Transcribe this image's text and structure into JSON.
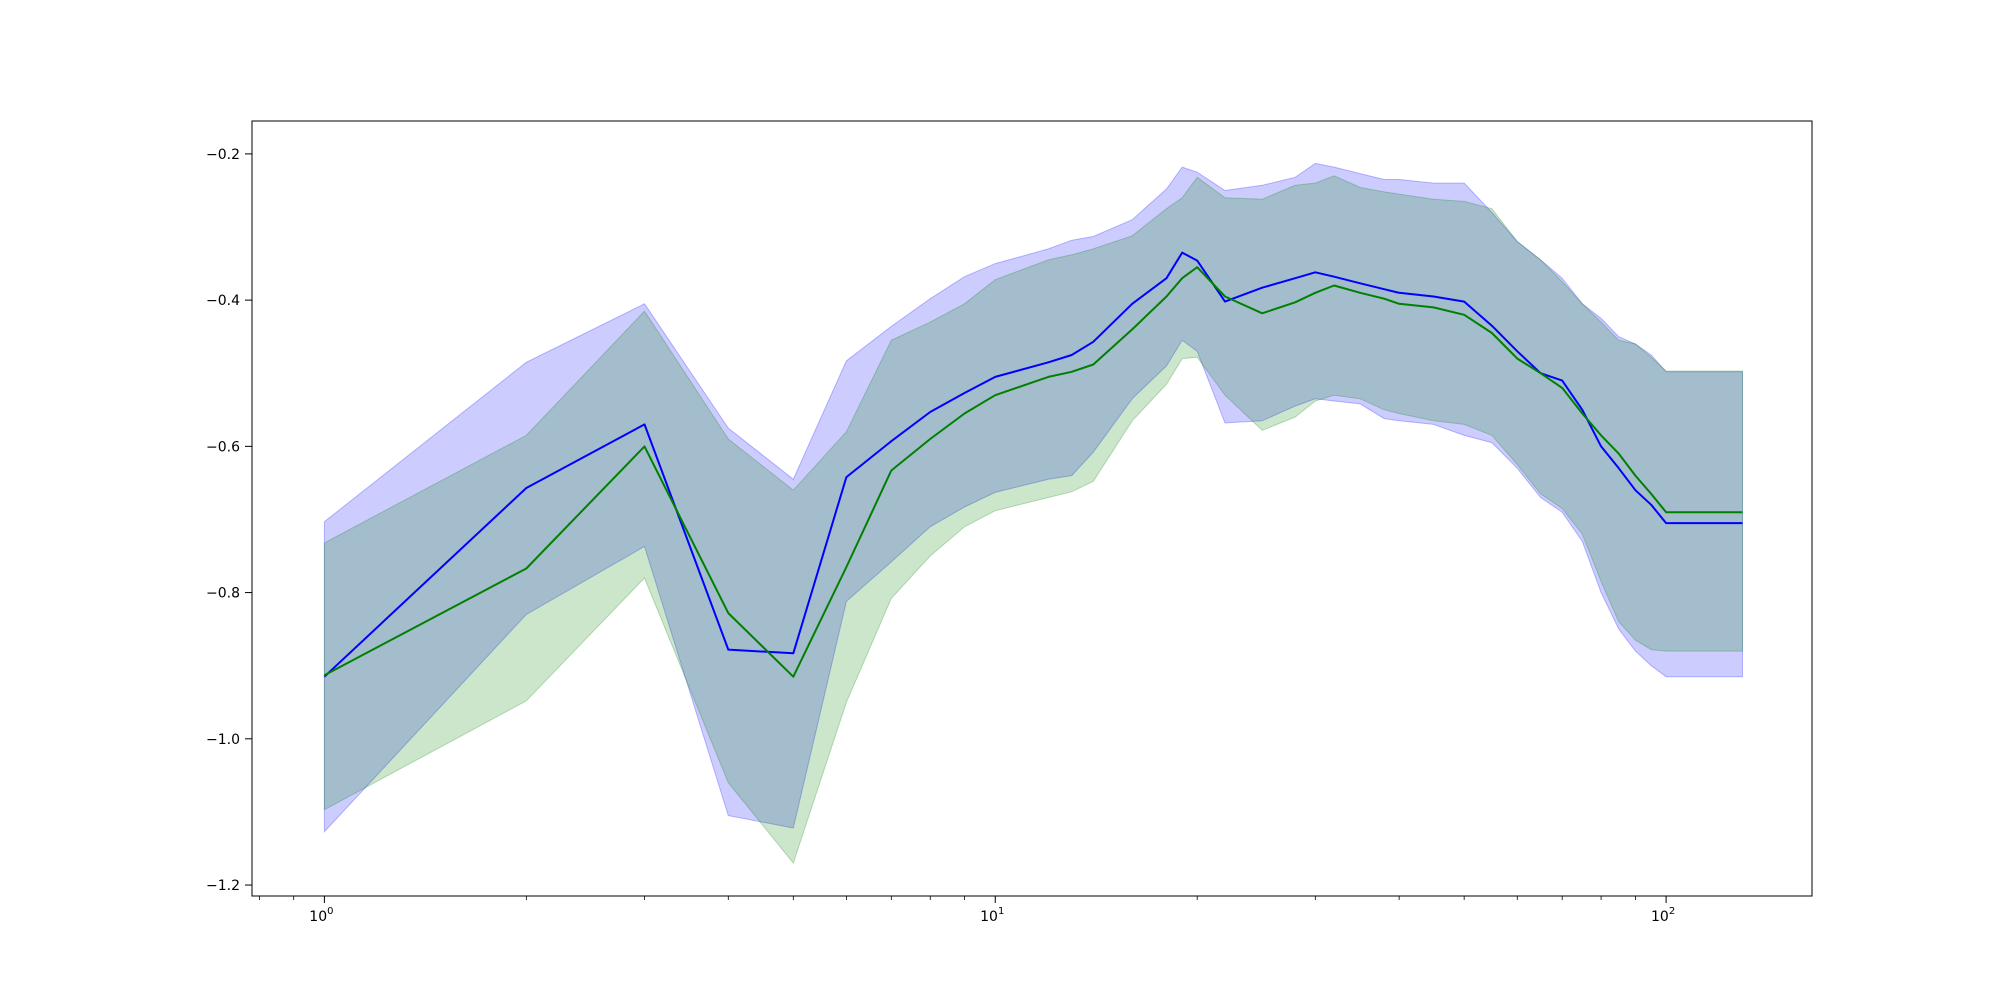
{
  "chart_data": {
    "type": "line",
    "title": "",
    "xlabel": "",
    "ylabel": "",
    "x_scale": "log",
    "x_ticks": [
      {
        "value": 1,
        "base": "10",
        "exp": "0"
      },
      {
        "value": 10,
        "base": "10",
        "exp": "1"
      },
      {
        "value": 100,
        "base": "10",
        "exp": "2"
      }
    ],
    "y_ticks": [
      {
        "value": -0.2,
        "label": "−0.2"
      },
      {
        "value": -0.4,
        "label": "−0.4"
      },
      {
        "value": -0.6,
        "label": "−0.6"
      },
      {
        "value": -0.8,
        "label": "−0.8"
      },
      {
        "value": -1.0,
        "label": "−1.0"
      },
      {
        "value": -1.2,
        "label": "−1.2"
      }
    ],
    "xlim": [
      0.78,
      165
    ],
    "ylim": [
      -1.215,
      -0.155
    ],
    "grid": false,
    "legend": "none",
    "series": [
      {
        "color": "#0000ff",
        "band_color": "#0000ff",
        "band_opacity": 0.2,
        "x": [
          1,
          2,
          3,
          4,
          5,
          6,
          7,
          8,
          9,
          10,
          12,
          13,
          14,
          16,
          18,
          19,
          20,
          22,
          25,
          28,
          30,
          32,
          35,
          38,
          40,
          45,
          50,
          55,
          60,
          65,
          70,
          75,
          80,
          85,
          90,
          95,
          100,
          130
        ],
        "values": [
          -0.915,
          -0.657,
          -0.57,
          -0.878,
          -0.883,
          -0.642,
          -0.593,
          -0.553,
          -0.527,
          -0.505,
          -0.485,
          -0.475,
          -0.457,
          -0.405,
          -0.37,
          -0.335,
          -0.346,
          -0.402,
          -0.383,
          -0.37,
          -0.362,
          -0.368,
          -0.377,
          -0.385,
          -0.39,
          -0.395,
          -0.402,
          -0.435,
          -0.47,
          -0.5,
          -0.51,
          -0.55,
          -0.6,
          -0.63,
          -0.66,
          -0.68,
          -0.705,
          -0.705
        ],
        "upper": [
          -0.703,
          -0.485,
          -0.405,
          -0.575,
          -0.645,
          -0.483,
          -0.436,
          -0.398,
          -0.368,
          -0.35,
          -0.33,
          -0.318,
          -0.313,
          -0.29,
          -0.248,
          -0.218,
          -0.225,
          -0.25,
          -0.243,
          -0.232,
          -0.213,
          -0.218,
          -0.227,
          -0.235,
          -0.235,
          -0.24,
          -0.24,
          -0.28,
          -0.32,
          -0.345,
          -0.37,
          -0.405,
          -0.425,
          -0.45,
          -0.46,
          -0.475,
          -0.498,
          -0.498
        ],
        "lower": [
          -1.127,
          -0.83,
          -0.737,
          -1.105,
          -1.122,
          -0.812,
          -0.758,
          -0.71,
          -0.683,
          -0.663,
          -0.645,
          -0.64,
          -0.608,
          -0.535,
          -0.49,
          -0.455,
          -0.47,
          -0.568,
          -0.565,
          -0.545,
          -0.535,
          -0.538,
          -0.542,
          -0.562,
          -0.565,
          -0.57,
          -0.585,
          -0.595,
          -0.63,
          -0.67,
          -0.69,
          -0.73,
          -0.8,
          -0.85,
          -0.88,
          -0.9,
          -0.915,
          -0.915
        ]
      },
      {
        "color": "#008000",
        "band_color": "#008000",
        "band_opacity": 0.2,
        "x": [
          1,
          2,
          3,
          4,
          5,
          6,
          7,
          8,
          9,
          10,
          12,
          13,
          14,
          16,
          18,
          19,
          20,
          22,
          25,
          28,
          30,
          32,
          35,
          38,
          40,
          45,
          50,
          55,
          60,
          65,
          70,
          75,
          80,
          85,
          90,
          95,
          100,
          130
        ],
        "values": [
          -0.913,
          -0.767,
          -0.6,
          -0.828,
          -0.915,
          -0.765,
          -0.633,
          -0.59,
          -0.555,
          -0.53,
          -0.505,
          -0.498,
          -0.488,
          -0.44,
          -0.395,
          -0.37,
          -0.355,
          -0.395,
          -0.418,
          -0.403,
          -0.39,
          -0.38,
          -0.39,
          -0.398,
          -0.405,
          -0.41,
          -0.42,
          -0.445,
          -0.48,
          -0.5,
          -0.52,
          -0.555,
          -0.585,
          -0.61,
          -0.64,
          -0.665,
          -0.69,
          -0.69
        ],
        "upper": [
          -0.732,
          -0.585,
          -0.415,
          -0.59,
          -0.66,
          -0.58,
          -0.455,
          -0.43,
          -0.405,
          -0.372,
          -0.345,
          -0.338,
          -0.33,
          -0.312,
          -0.275,
          -0.26,
          -0.232,
          -0.26,
          -0.262,
          -0.243,
          -0.24,
          -0.23,
          -0.246,
          -0.252,
          -0.255,
          -0.262,
          -0.265,
          -0.275,
          -0.32,
          -0.345,
          -0.375,
          -0.405,
          -0.43,
          -0.455,
          -0.46,
          -0.478,
          -0.497,
          -0.497
        ],
        "lower": [
          -1.097,
          -0.948,
          -0.78,
          -1.06,
          -1.17,
          -0.95,
          -0.808,
          -0.75,
          -0.71,
          -0.688,
          -0.67,
          -0.662,
          -0.648,
          -0.565,
          -0.515,
          -0.48,
          -0.478,
          -0.53,
          -0.578,
          -0.56,
          -0.538,
          -0.53,
          -0.535,
          -0.55,
          -0.555,
          -0.565,
          -0.57,
          -0.585,
          -0.625,
          -0.665,
          -0.685,
          -0.72,
          -0.785,
          -0.84,
          -0.865,
          -0.878,
          -0.88,
          -0.88
        ]
      }
    ]
  }
}
